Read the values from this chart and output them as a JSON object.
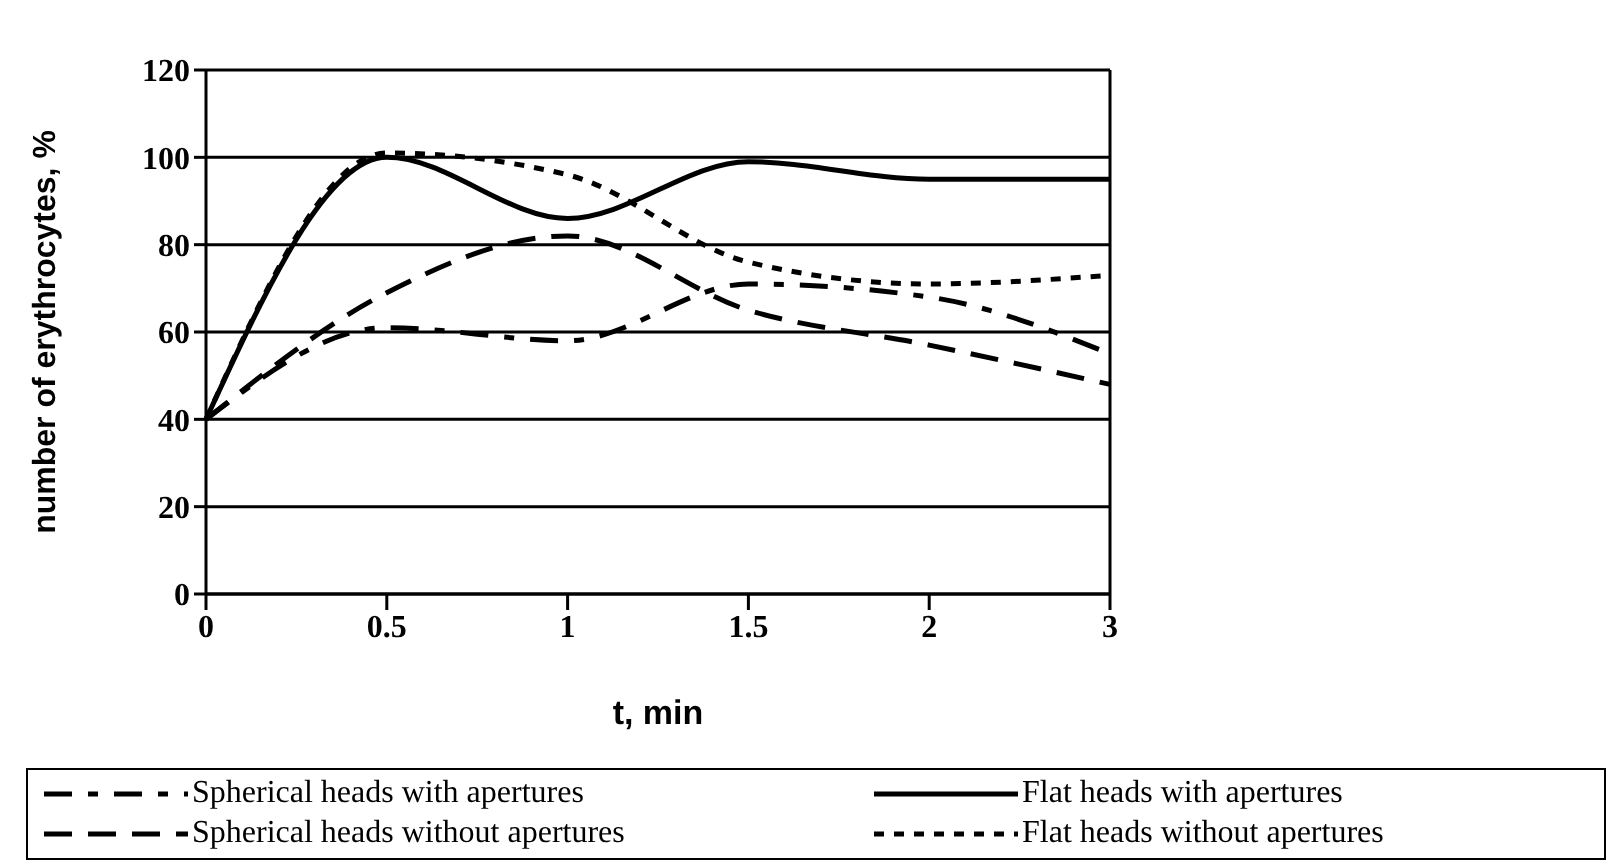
{
  "chart_data": {
    "type": "line",
    "xlabel": "t, min",
    "ylabel": "number of erythrocytes,  %",
    "categories": [
      "0",
      "0.5",
      "1",
      "1.5",
      "2",
      "3"
    ],
    "ylim": [
      0,
      120
    ],
    "yticks": [
      0,
      20,
      40,
      60,
      80,
      100,
      120
    ],
    "grid": "y",
    "legend": "bottom",
    "marker": "none",
    "series": [
      {
        "name": "Spherical heads with apertures",
        "color": "#000000",
        "line_style": "dashdot",
        "values": [
          40,
          61,
          58,
          71,
          68,
          55
        ]
      },
      {
        "name": "Flat heads with apertures",
        "color": "#000000",
        "line_style": "solid",
        "values": [
          40,
          100,
          86,
          99,
          95,
          95
        ]
      },
      {
        "name": "Spherical heads without apertures",
        "color": "#000000",
        "line_style": "dashed",
        "values": [
          40,
          69,
          82,
          65,
          57,
          48
        ]
      },
      {
        "name": "Flat heads without apertures",
        "color": "#000000",
        "line_style": "dotted",
        "values": [
          40,
          101,
          96,
          76,
          71,
          73
        ]
      }
    ]
  }
}
